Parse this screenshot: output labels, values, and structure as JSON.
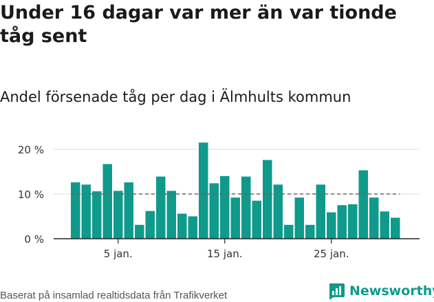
{
  "title": "Under 16 dagar var mer än var tionde tåg sent",
  "subtitle": "Andel försenade tåg per dag i Älmhults kommun",
  "footer": "Baserat på insamlad realtidsdata från Trafikverket",
  "brand": {
    "label": "Newsworthy",
    "icon": "newsworthy-logo-icon"
  },
  "colors": {
    "bar": "#0f9a8b",
    "grid": "#dddddd",
    "reference": "#666666",
    "axis": "#222222",
    "brand": "#0f9a8b"
  },
  "chart_data": {
    "type": "bar",
    "x_start_day": 1,
    "x_tick_days": [
      5,
      15,
      25
    ],
    "x_tick_labels": [
      "5 jan.",
      "15 jan.",
      "25 jan."
    ],
    "values": [
      12.6,
      12.1,
      10.6,
      16.7,
      10.7,
      12.6,
      3.1,
      6.2,
      13.9,
      10.7,
      5.6,
      5.0,
      21.5,
      12.4,
      14.0,
      9.2,
      13.9,
      8.5,
      17.6,
      12.1,
      3.1,
      9.2,
      3.1,
      12.1,
      5.9,
      7.5,
      7.7,
      15.3,
      9.2,
      6.1,
      4.7
    ],
    "y_ticks": [
      0,
      10,
      20
    ],
    "y_tick_labels": [
      "0 %",
      "10 %",
      "20 %"
    ],
    "ylim": [
      0,
      22
    ],
    "reference_line": 10,
    "grid": true,
    "xlabel": "",
    "ylabel": ""
  }
}
